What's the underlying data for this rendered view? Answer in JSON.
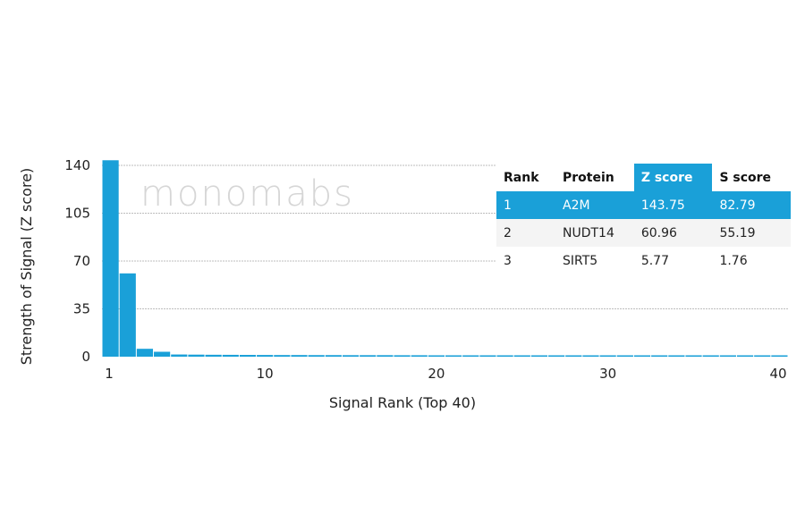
{
  "chart_data": {
    "type": "bar",
    "xlabel": "Signal Rank (Top 40)",
    "ylabel": "Strength of Signal (Z score)",
    "ylim": [
      0,
      140
    ],
    "xlim": [
      1,
      40
    ],
    "yticks": [
      0,
      35,
      70,
      105,
      140
    ],
    "xticks": [
      1,
      10,
      20,
      30,
      40
    ],
    "x": [
      1,
      2,
      3,
      4,
      5,
      6,
      7,
      8,
      9,
      10,
      11,
      12,
      13,
      14,
      15,
      16,
      17,
      18,
      19,
      20,
      21,
      22,
      23,
      24,
      25,
      26,
      27,
      28,
      29,
      30,
      31,
      32,
      33,
      34,
      35,
      36,
      37,
      38,
      39,
      40
    ],
    "values": [
      143.75,
      60.96,
      5.77,
      3.6,
      1.6,
      1.5,
      1.4,
      1.35,
      1.3,
      1.25,
      1.2,
      1.2,
      1.15,
      1.15,
      1.1,
      1.1,
      1.1,
      1.05,
      1.05,
      1.0,
      1.0,
      1.0,
      1.0,
      1.0,
      1.0,
      1.0,
      1.0,
      1.0,
      1.0,
      1.0,
      1.0,
      1.0,
      1.0,
      1.0,
      1.0,
      1.0,
      1.0,
      1.0,
      1.0,
      1.0
    ],
    "bar_color": "#1aa0d8",
    "grid": true
  },
  "watermark": "monomabs",
  "table": {
    "headers": [
      "Rank",
      "Protein",
      "Z score",
      "S score"
    ],
    "highlight_header": "#1aa0d8",
    "rows": [
      [
        "1",
        "A2M",
        "143.75",
        "82.79"
      ],
      [
        "2",
        "NUDT14",
        "60.96",
        "55.19"
      ],
      [
        "3",
        "SIRT5",
        "5.77",
        "1.76"
      ]
    ]
  }
}
